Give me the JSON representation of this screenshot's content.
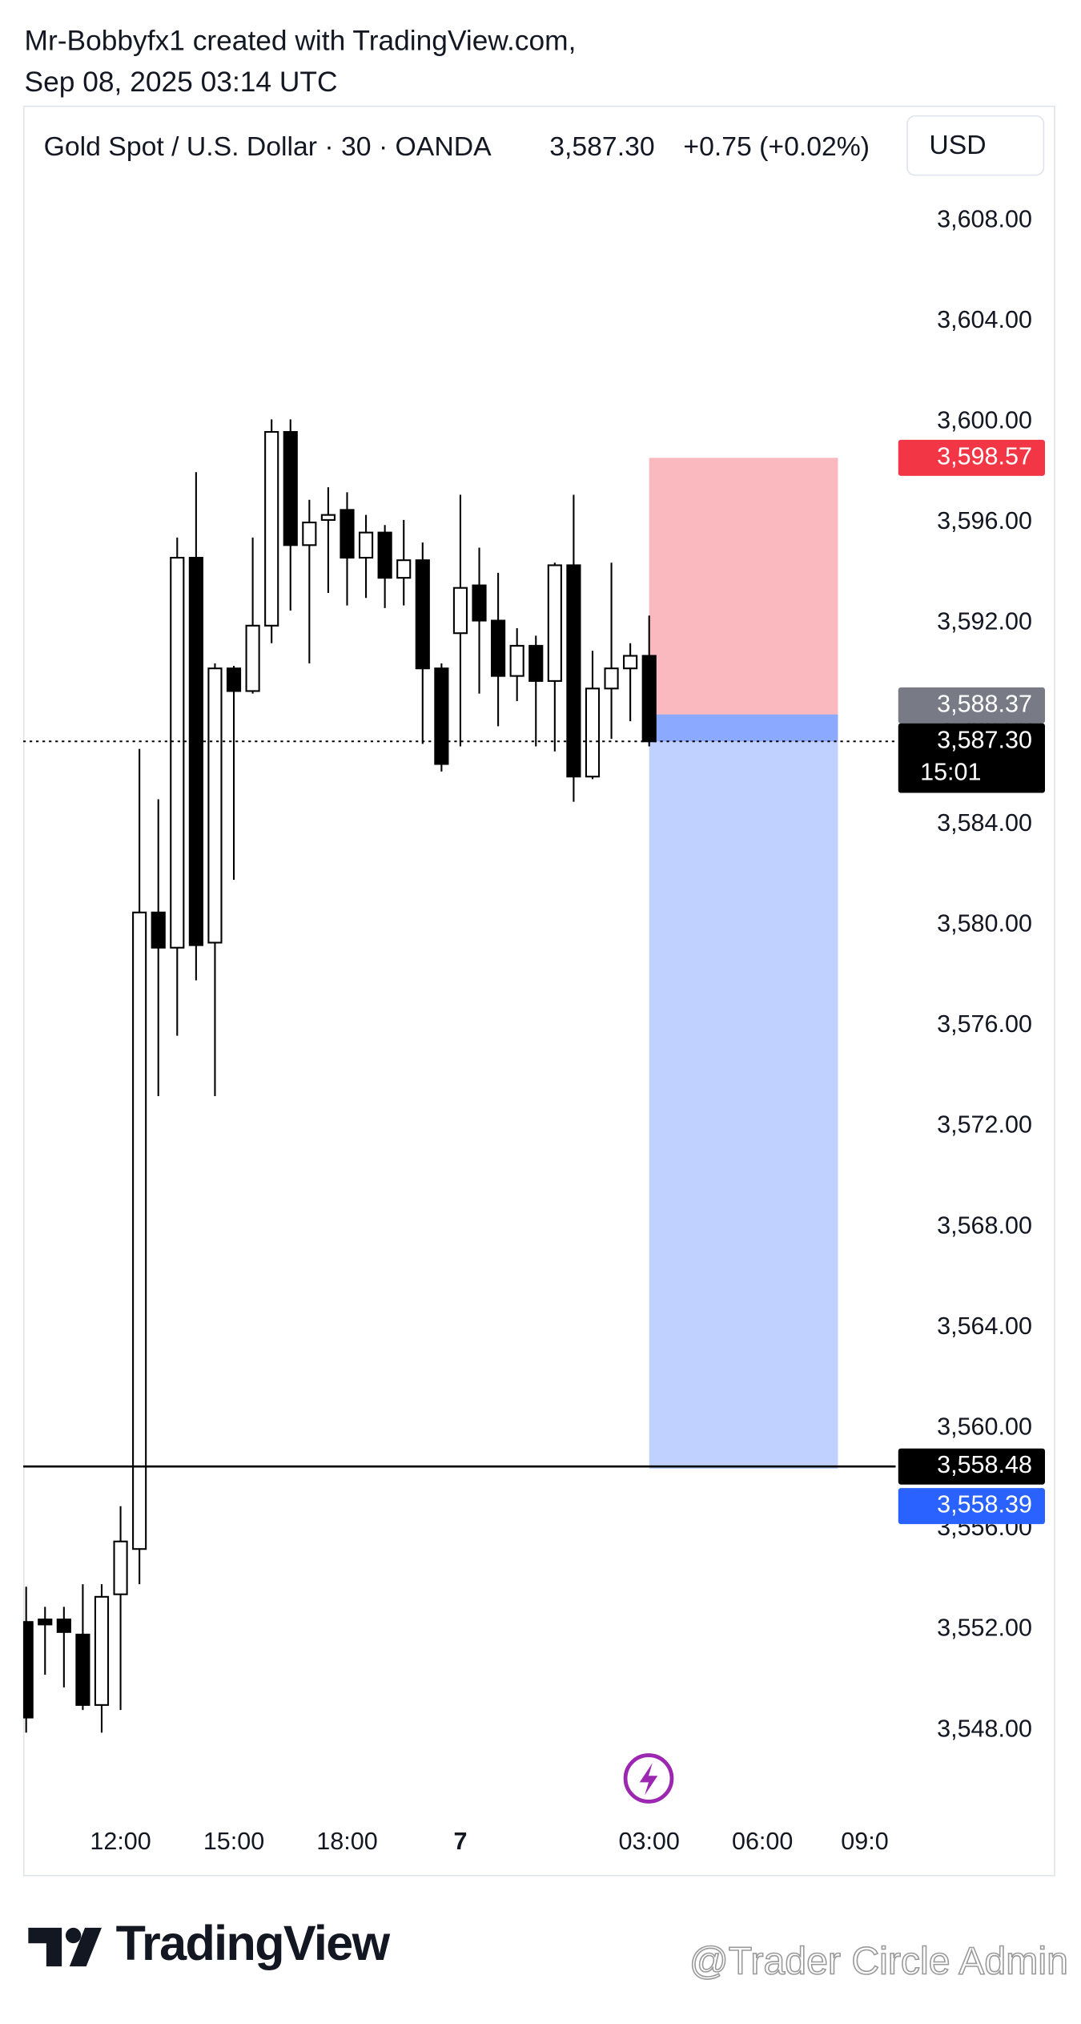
{
  "header": {
    "author_line": "Mr-Bobbyfx1 created with TradingView.com,",
    "date_line": "Sep 08, 2025 03:14 UTC"
  },
  "chart_data": {
    "type": "candlestick",
    "title": "Gold Spot / U.S. Dollar · 30 · OANDA",
    "last_price": "3,587.30",
    "change": "+0.75 (+0.02%)",
    "currency": "USD",
    "categories": [
      null,
      null,
      null,
      null,
      null,
      "12:00",
      null,
      null,
      null,
      null,
      null,
      "15:00",
      null,
      null,
      null,
      null,
      null,
      "18:00",
      null,
      null,
      null,
      null,
      null,
      "7",
      null,
      null,
      null,
      null,
      null,
      null,
      null,
      null,
      null,
      "03:00",
      null,
      null,
      null,
      null,
      null,
      "06:00",
      null,
      null,
      null,
      null,
      null,
      "09:0"
    ],
    "open": [
      3552.3,
      3552.4,
      3552.4,
      3551.8,
      3549.0,
      3553.4,
      3555.2,
      3580.5,
      3579.1,
      3594.6,
      3579.3,
      3590.2,
      3589.3,
      3591.9,
      3599.6,
      3595.1,
      3596.1,
      3596.5,
      3594.6,
      3595.6,
      3593.8,
      3594.5,
      3590.2,
      3591.6,
      3593.5,
      3592.1,
      3589.9,
      3591.1,
      3589.7,
      3594.3,
      3585.9,
      3589.4,
      3590.2,
      3590.7,
      null,
      null,
      null,
      null,
      null,
      null,
      null,
      null,
      null,
      null,
      null,
      null
    ],
    "high": [
      3553.7,
      3552.9,
      3552.9,
      3553.8,
      3553.8,
      3556.9,
      3587.0,
      3585.0,
      3595.4,
      3598.0,
      3590.4,
      3590.3,
      3595.4,
      3600.1,
      3600.1,
      3596.9,
      3597.4,
      3597.2,
      3596.3,
      3595.9,
      3596.1,
      3595.2,
      3590.4,
      3597.1,
      3595.0,
      3594.0,
      3591.8,
      3591.5,
      3594.4,
      3597.1,
      3590.9,
      3594.4,
      3591.2,
      3592.3,
      null,
      null,
      null,
      null,
      null,
      null,
      null,
      null,
      null,
      null,
      null,
      null
    ],
    "low": [
      3547.9,
      3550.2,
      3549.7,
      3548.8,
      3547.9,
      3548.8,
      3553.8,
      3573.2,
      3575.6,
      3577.8,
      3573.2,
      3581.8,
      3589.2,
      3591.2,
      3592.5,
      3590.4,
      3593.2,
      3592.7,
      3593.0,
      3592.6,
      3592.7,
      3587.2,
      3586.1,
      3587.1,
      3589.2,
      3587.9,
      3588.9,
      3587.1,
      3586.9,
      3584.9,
      3585.8,
      3587.4,
      3588.1,
      3587.1,
      null,
      null,
      null,
      null,
      null,
      null,
      null,
      null,
      null,
      null,
      null,
      null
    ],
    "close": [
      3548.5,
      3552.2,
      3551.9,
      3549.0,
      3553.3,
      3555.5,
      3580.5,
      3579.1,
      3594.6,
      3579.2,
      3590.2,
      3589.3,
      3591.9,
      3599.6,
      3595.1,
      3596.0,
      3596.3,
      3594.6,
      3595.6,
      3593.8,
      3594.5,
      3590.2,
      3586.4,
      3593.4,
      3592.1,
      3589.9,
      3591.1,
      3589.7,
      3594.3,
      3585.9,
      3589.4,
      3590.2,
      3590.7,
      3587.3,
      null,
      null,
      null,
      null,
      null,
      null,
      null,
      null,
      null,
      null,
      null,
      null
    ],
    "up_color": "#ffffff",
    "down_color": "#000000",
    "ylim": [
      3544.7,
      3609.6
    ],
    "yticks": [
      {
        "value": 3548,
        "label": "3,548.00"
      },
      {
        "value": 3552,
        "label": "3,552.00"
      },
      {
        "value": 3556,
        "label": "3,556.00"
      },
      {
        "value": 3560,
        "label": "3,560.00"
      },
      {
        "value": 3564,
        "label": "3,564.00"
      },
      {
        "value": 3568,
        "label": "3,568.00"
      },
      {
        "value": 3572,
        "label": "3,572.00"
      },
      {
        "value": 3576,
        "label": "3,576.00"
      },
      {
        "value": 3580,
        "label": "3,580.00"
      },
      {
        "value": 3584,
        "label": "3,584.00"
      },
      {
        "value": 3588,
        "label": "3,588.00"
      },
      {
        "value": 3592,
        "label": "3,592.00"
      },
      {
        "value": 3596,
        "label": "3,596.00"
      },
      {
        "value": 3600,
        "label": "3,600.00"
      },
      {
        "value": 3604,
        "label": "3,604.00"
      },
      {
        "value": 3608,
        "label": "3,608.00"
      }
    ],
    "grid": false,
    "price_lines": [
      {
        "value": 3598.57,
        "label": "3,598.57",
        "color": "#f23645"
      },
      {
        "value": 3588.37,
        "label": "3,588.37",
        "color": "#787b86"
      },
      {
        "value": 3587.3,
        "label": "3,587.30",
        "color": "#000000",
        "line": "dotted",
        "countdown": "15:01"
      },
      {
        "value": 3558.48,
        "label": "3,558.48",
        "color": "#000000",
        "line": "solid"
      },
      {
        "value": 3558.39,
        "label": "3,558.39",
        "color": "#2962ff"
      }
    ]
  },
  "footer": {
    "logo": "TradingView",
    "watermark": "@Trader Circle Admin"
  }
}
